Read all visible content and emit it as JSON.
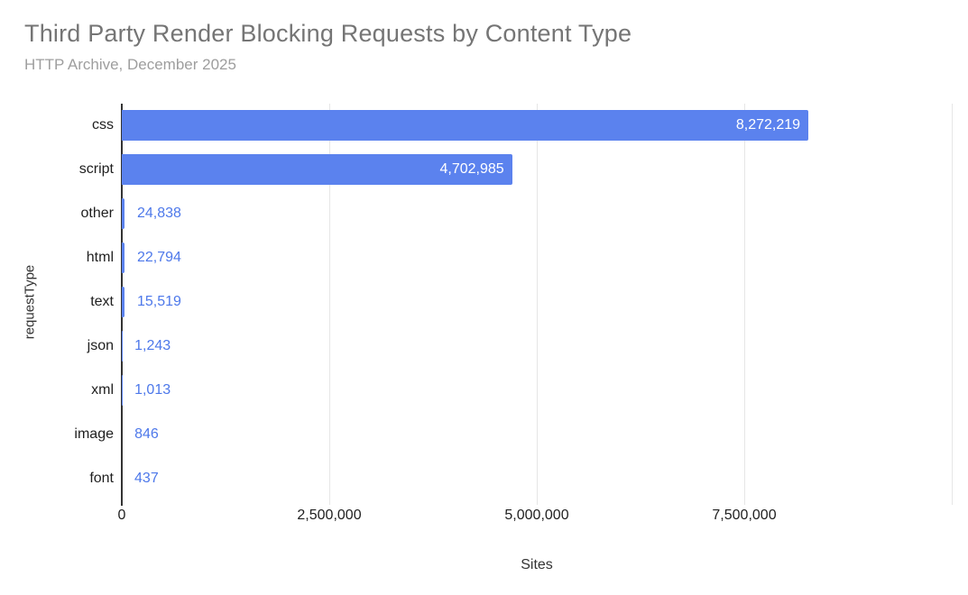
{
  "chart_data": {
    "type": "bar",
    "orientation": "horizontal",
    "title": "Third Party Render Blocking Requests by Content Type",
    "subtitle": "HTTP Archive, December 2025",
    "categories": [
      "css",
      "script",
      "other",
      "html",
      "text",
      "json",
      "xml",
      "image",
      "font"
    ],
    "values": [
      8272219,
      4702985,
      24838,
      22794,
      15519,
      1243,
      1013,
      846,
      437
    ],
    "value_labels": [
      "8,272,219",
      "4,702,985",
      "24,838",
      "22,794",
      "15,519",
      "1,243",
      "1,013",
      "846",
      "437"
    ],
    "xlabel": "Sites",
    "ylabel": "requestType",
    "xlim": [
      0,
      10000000
    ],
    "xticks": [
      0,
      2500000,
      5000000,
      7500000
    ],
    "xtick_labels": [
      "0",
      "2,500,000",
      "5,000,000",
      "7,500,000"
    ],
    "gridline_values": [
      2500000,
      5000000,
      7500000,
      10000000
    ],
    "grid": true,
    "legend": "none",
    "colors": {
      "bar": "#5b82ee",
      "value_label_inside": "#ffffff",
      "value_label_outside": "#4d78ea",
      "title": "#757575",
      "subtitle": "#9e9e9e",
      "grid": "#e6e6e6",
      "axis_line": "#333333",
      "text": "#1f1f1f"
    }
  }
}
